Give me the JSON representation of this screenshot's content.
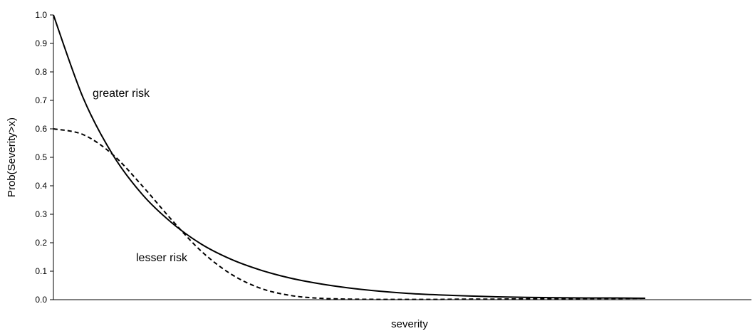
{
  "chart_data": {
    "type": "line",
    "title": "",
    "xlabel": "severity",
    "ylabel": "Prob(Severity>x)",
    "ylim": [
      0,
      1
    ],
    "yticks": [
      "0.0",
      "0.1",
      "0.2",
      "0.3",
      "0.4",
      "0.5",
      "0.6",
      "0.7",
      "0.8",
      "0.9",
      "1.0"
    ],
    "grid": false,
    "legend": "none",
    "x": [
      0,
      0.05,
      0.1,
      0.15,
      0.2,
      0.25,
      0.3,
      0.35,
      0.4,
      0.45,
      0.5,
      0.55,
      0.6,
      0.65,
      0.7,
      0.75,
      0.8,
      0.85,
      0.9,
      0.95,
      1.0
    ],
    "series": [
      {
        "name": "greater risk",
        "style": "solid",
        "values": [
          1.0,
          0.71,
          0.51,
          0.37,
          0.27,
          0.195,
          0.142,
          0.104,
          0.076,
          0.056,
          0.041,
          0.03,
          0.022,
          0.017,
          0.013,
          0.01,
          0.008,
          0.007,
          0.006,
          0.006,
          0.005
        ]
      },
      {
        "name": "lesser risk",
        "style": "dashed",
        "values": [
          0.6,
          0.58,
          0.51,
          0.4,
          0.28,
          0.17,
          0.09,
          0.04,
          0.015,
          0.005,
          0.002,
          0.001,
          0.001,
          0.001,
          0.002,
          0.002,
          0.003,
          0.003,
          0.004,
          0.004,
          0.005
        ]
      }
    ],
    "annotations": [
      {
        "text": "greater risk",
        "series": 0
      },
      {
        "text": "lesser risk",
        "series": 1
      }
    ],
    "colors": {
      "line": "#000000",
      "axis": "#000000"
    }
  }
}
